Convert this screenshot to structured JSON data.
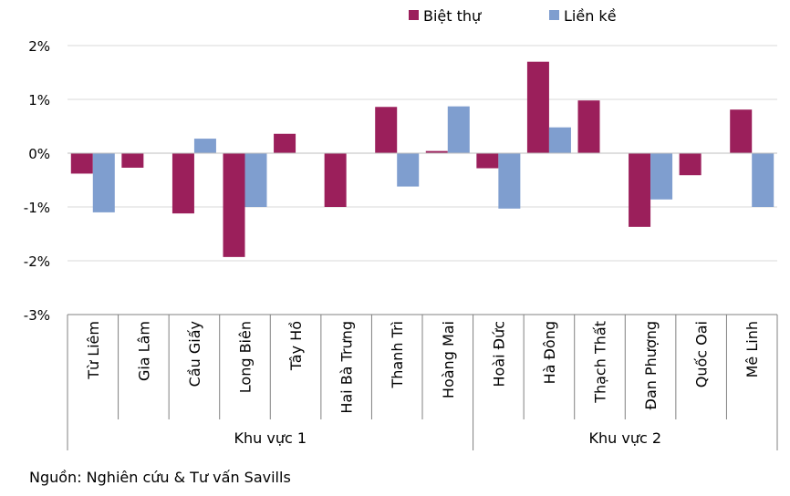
{
  "chart_data": {
    "type": "bar",
    "title": "",
    "xlabel": "",
    "ylabel": "",
    "ylim": [
      -3,
      2
    ],
    "yticks": [
      {
        "value": 2,
        "label": "2%"
      },
      {
        "value": 1,
        "label": "1%"
      },
      {
        "value": 0,
        "label": "0%"
      },
      {
        "value": -1,
        "label": "-1%"
      },
      {
        "value": -2,
        "label": "-2%"
      },
      {
        "value": -3,
        "label": "-3%"
      }
    ],
    "grid": true,
    "legend_position": "top",
    "categories": [
      "Từ Liêm",
      "Gia Lâm",
      "Cầu Giấy",
      "Long Biên",
      "Tây Hồ",
      "Hai Bà Trưng",
      "Thanh Trì",
      "Hoàng Mai",
      "Hoài Đức",
      "Hà Đông",
      "Thạch Thất",
      "Đan Phượng",
      "Quốc Oai",
      "Mê Linh"
    ],
    "groups": [
      {
        "label": "Khu vực 1",
        "start": 0,
        "end": 7
      },
      {
        "label": "Khu vực 2",
        "start": 8,
        "end": 13
      }
    ],
    "series": [
      {
        "name": "Biệt thự",
        "color": "#9B1F5B",
        "values": [
          -0.38,
          -0.27,
          -1.12,
          -1.93,
          0.36,
          -1.0,
          0.86,
          0.04,
          -0.28,
          1.7,
          0.98,
          -1.37,
          -0.41,
          0.81
        ]
      },
      {
        "name": "Liền kề",
        "color": "#7F9ECF",
        "values": [
          -1.1,
          0.0,
          0.27,
          -1.0,
          0.0,
          0.0,
          -0.62,
          0.87,
          -1.03,
          0.48,
          0.0,
          -0.86,
          0.0,
          -1.0
        ]
      }
    ]
  },
  "source": "Nguồn: Nghiên cứu & Tư vấn Savills"
}
